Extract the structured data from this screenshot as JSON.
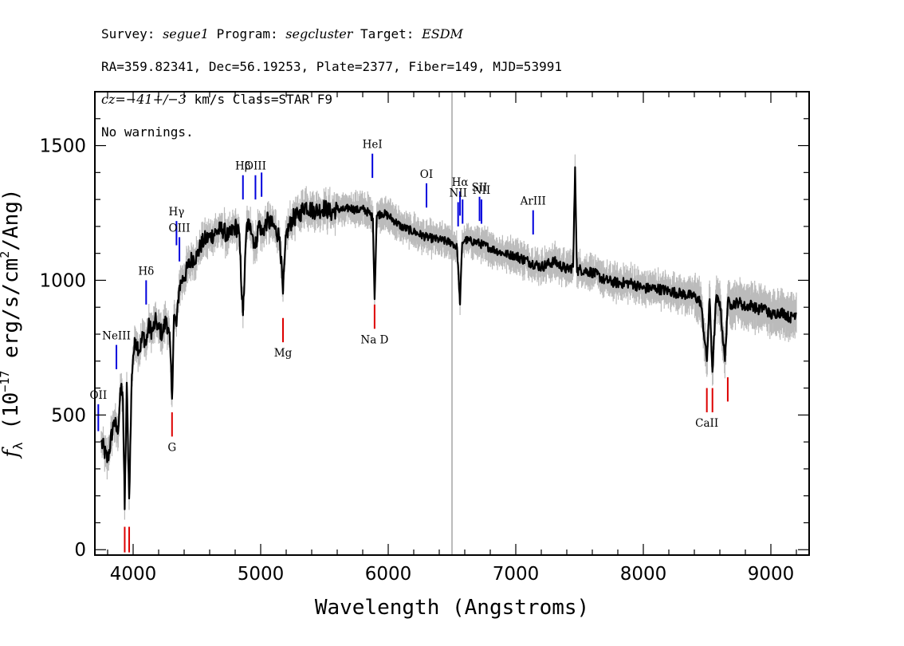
{
  "header": {
    "line1": {
      "survey_label": "Survey:",
      "survey": "segue1",
      "program_label": "Program:",
      "program": "segcluster",
      "target_label": "Target:",
      "target": "ESDM"
    },
    "line2": "RA=359.82341, Dec=56.19253, Plate=2377, Fiber=149, MJD=53991",
    "line3": {
      "cz_label": "cz=",
      "cz_value": "−41+/−3",
      "cz_units": " km/s Class=STAR F9"
    },
    "line4": "No warnings."
  },
  "chart_data": {
    "type": "line",
    "title": "",
    "xlabel": "Wavelength (Angstroms)",
    "ylabel": "f_λ (10^-17 erg/s/cm^2/Ang)",
    "ylabel_parts": {
      "prefix": "f",
      "sub": "λ",
      "text1": " (10",
      "sup1": "−17",
      "text2": " erg/s/cm",
      "sup2": "2",
      "text3": "/Ang)"
    },
    "xlim": [
      3700,
      9300
    ],
    "ylim": [
      -20,
      1700
    ],
    "xticks": [
      4000,
      5000,
      6000,
      7000,
      8000,
      9000
    ],
    "xtick_labels": [
      "4000",
      "5000",
      "6000",
      "7000",
      "8000",
      "9000"
    ],
    "yticks": [
      0,
      500,
      1000,
      1500
    ],
    "ytick_labels": [
      "0",
      "500",
      "1000",
      "1500"
    ],
    "vertical_marker_x": 6500,
    "series": [
      {
        "name": "flux",
        "color": "#000000",
        "x": [
          3750,
          3800,
          3850,
          3880,
          3900,
          3920,
          3934,
          3950,
          3969,
          3990,
          4000,
          4020,
          4050,
          4080,
          4101,
          4120,
          4150,
          4180,
          4200,
          4230,
          4260,
          4290,
          4305,
          4320,
          4340,
          4360,
          4380,
          4400,
          4430,
          4460,
          4500,
          4530,
          4560,
          4600,
          4650,
          4700,
          4750,
          4800,
          4830,
          4861,
          4890,
          4920,
          4957,
          4990,
          5007,
          5050,
          5100,
          5150,
          5175,
          5200,
          5250,
          5300,
          5350,
          5400,
          5450,
          5500,
          5550,
          5600,
          5650,
          5700,
          5750,
          5800,
          5850,
          5880,
          5893,
          5910,
          5950,
          6000,
          6050,
          6100,
          6200,
          6300,
          6400,
          6500,
          6540,
          6563,
          6580,
          6600,
          6700,
          6800,
          6900,
          7000,
          7100,
          7200,
          7300,
          7400,
          7450,
          7465,
          7480,
          7500,
          7600,
          7700,
          7800,
          7900,
          8000,
          8100,
          8200,
          8300,
          8400,
          8450,
          8498,
          8520,
          8542,
          8570,
          8600,
          8640,
          8662,
          8690,
          8750,
          8800,
          8850,
          8900,
          8950,
          9000,
          9050,
          9100,
          9150,
          9200
        ],
        "y": [
          400,
          330,
          480,
          430,
          600,
          560,
          150,
          620,
          190,
          650,
          720,
          780,
          740,
          800,
          760,
          830,
          810,
          850,
          820,
          800,
          860,
          760,
          560,
          870,
          830,
          970,
          1000,
          1010,
          1050,
          1080,
          1090,
          1130,
          1150,
          1160,
          1180,
          1190,
          1160,
          1200,
          1180,
          870,
          1200,
          1210,
          1120,
          1220,
          1170,
          1220,
          1200,
          1160,
          950,
          1170,
          1230,
          1240,
          1280,
          1260,
          1260,
          1270,
          1250,
          1265,
          1260,
          1270,
          1260,
          1265,
          1250,
          1230,
          930,
          1240,
          1250,
          1240,
          1220,
          1200,
          1180,
          1160,
          1150,
          1140,
          1120,
          910,
          1140,
          1150,
          1140,
          1120,
          1100,
          1090,
          1070,
          1050,
          1070,
          1040,
          1050,
          1420,
          1030,
          1040,
          1030,
          1000,
          990,
          990,
          970,
          970,
          960,
          950,
          940,
          920,
          700,
          930,
          660,
          930,
          920,
          700,
          920,
          910,
          920,
          900,
          910,
          890,
          900,
          870,
          880,
          880,
          860,
          880
        ]
      },
      {
        "name": "error",
        "color": "#bbbbbb"
      }
    ],
    "emission_lines": [
      {
        "label": "OII",
        "x": 3727,
        "y_top": 540,
        "y_bottom": 440
      },
      {
        "label": "NeIII",
        "x": 3869,
        "y_top": 760,
        "y_bottom": 670
      },
      {
        "label": "Hδ",
        "x": 4102,
        "y_top": 1000,
        "y_bottom": 910
      },
      {
        "label": "Hγ",
        "x": 4340,
        "y_top": 1220,
        "y_bottom": 1130
      },
      {
        "label": "OIII",
        "x": 4363,
        "y_top": 1160,
        "y_bottom": 1070
      },
      {
        "label": "Hβ",
        "x": 4861,
        "y_top": 1390,
        "y_bottom": 1300
      },
      {
        "label": "OIII",
        "x": 4959,
        "y_top": 1390,
        "y_bottom": 1300
      },
      {
        "label": "",
        "x": 5007,
        "y_top": 1400,
        "y_bottom": 1310
      },
      {
        "label": "HeI",
        "x": 5876,
        "y_top": 1470,
        "y_bottom": 1380
      },
      {
        "label": "OI",
        "x": 6300,
        "y_top": 1360,
        "y_bottom": 1270
      },
      {
        "label": "NII",
        "x": 6548,
        "y_top": 1290,
        "y_bottom": 1200
      },
      {
        "label": "Hα",
        "x": 6563,
        "y_top": 1330,
        "y_bottom": 1240
      },
      {
        "label": "",
        "x": 6583,
        "y_top": 1300,
        "y_bottom": 1210
      },
      {
        "label": "SII",
        "x": 6716,
        "y_top": 1310,
        "y_bottom": 1220
      },
      {
        "label": "NII",
        "x": 6731,
        "y_top": 1300,
        "y_bottom": 1210
      },
      {
        "label": "ArIII",
        "x": 7136,
        "y_top": 1260,
        "y_bottom": 1170
      }
    ],
    "absorption_lines": [
      {
        "label": "",
        "x": 3934,
        "y_top": 85,
        "y_bottom": -10
      },
      {
        "label": "",
        "x": 3969,
        "y_top": 85,
        "y_bottom": -10
      },
      {
        "label": "G",
        "x": 4305,
        "y_top": 510,
        "y_bottom": 420
      },
      {
        "label": "Mg",
        "x": 5175,
        "y_top": 860,
        "y_bottom": 770
      },
      {
        "label": "Na D",
        "x": 5893,
        "y_top": 910,
        "y_bottom": 820
      },
      {
        "label": "CaII",
        "x": 8498,
        "y_top": 600,
        "y_bottom": 510
      },
      {
        "label": "",
        "x": 8542,
        "y_top": 600,
        "y_bottom": 510
      },
      {
        "label": "",
        "x": 8662,
        "y_top": 640,
        "y_bottom": 550
      }
    ]
  },
  "colors": {
    "emission": "#0000dd",
    "absorption": "#dd0000",
    "flux": "#000000",
    "error": "#bbbbbb",
    "marker": "#bbbbbb"
  }
}
